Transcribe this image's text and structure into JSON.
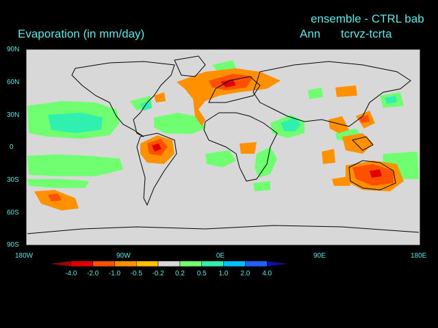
{
  "title_left": "Evaporation (in mm/day)",
  "title_right_line1": "ensemble - CTRL bab",
  "title_season": "Ann",
  "title_experiment": "tcrvz-tcrta",
  "lat_ticks": [
    "90N",
    "60N",
    "30N",
    "0",
    "30S",
    "60S",
    "90S"
  ],
  "lon_ticks": [
    "180W",
    "90W",
    "0E",
    "90E",
    "180E"
  ],
  "colorbar": {
    "labels": [
      "-4.0",
      "-2.0",
      "-1.0",
      "-0.5",
      "-0.2",
      "0.2",
      "0.5",
      "1.0",
      "2.0",
      "4.0"
    ],
    "colors": [
      "#a00000",
      "#e00000",
      "#ff5000",
      "#ff9000",
      "#ffc000",
      "#d8d8d8",
      "#70ff70",
      "#30f0b0",
      "#00c0ff",
      "#2060ff",
      "#1010a0"
    ]
  },
  "colors": {
    "background": "#000000",
    "map_neutral": "#d8d8d8",
    "title_text": "#5fe8e8"
  }
}
